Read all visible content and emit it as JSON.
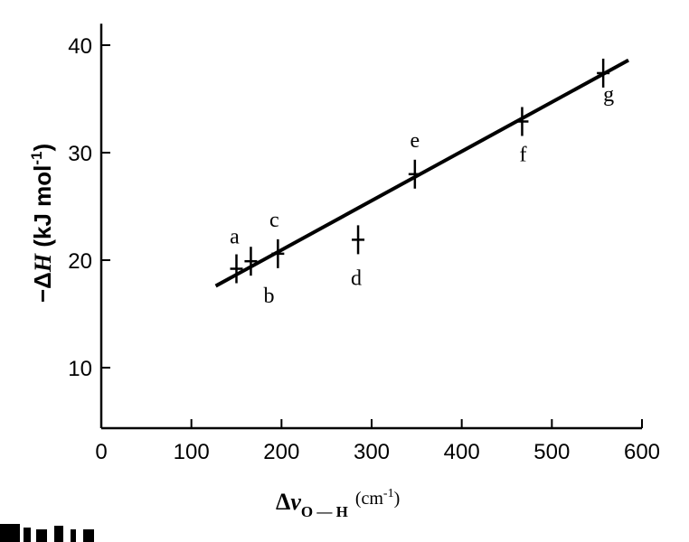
{
  "chart_data": {
    "type": "scatter",
    "ylabel": {
      "prefix": "−Δ",
      "symbol": "H",
      "unit": " (kJ mol",
      "sup": "-1",
      "close": ")"
    },
    "xlabel": {
      "prefix": "Δ",
      "symbol": "ν",
      "sub": "O — H",
      "unit": "(cm",
      "sup": "-1",
      "close": ")"
    },
    "xlim": [
      0,
      600
    ],
    "ylim": [
      4.5,
      42
    ],
    "x_ticks": [
      "0",
      "100",
      "200",
      "300",
      "400",
      "500",
      "600"
    ],
    "x_tick_values": [
      0,
      100,
      200,
      300,
      400,
      500,
      600
    ],
    "y_ticks": [
      "10",
      "20",
      "30",
      "40"
    ],
    "y_tick_values": [
      10,
      20,
      30,
      40
    ],
    "points": [
      {
        "label": "a",
        "x": 150,
        "y": 19.2
      },
      {
        "label": "b",
        "x": 166,
        "y": 19.9
      },
      {
        "label": "c",
        "x": 196,
        "y": 20.6
      },
      {
        "label": "d",
        "x": 285,
        "y": 21.9
      },
      {
        "label": "e",
        "x": 348,
        "y": 28.0
      },
      {
        "label": "f",
        "x": 467,
        "y": 32.9
      },
      {
        "label": "g",
        "x": 557,
        "y": 37.4
      }
    ],
    "fit_line": {
      "x": [
        127,
        585
      ],
      "y": [
        17.6,
        38.6
      ]
    },
    "grid": false,
    "legend": "none"
  }
}
